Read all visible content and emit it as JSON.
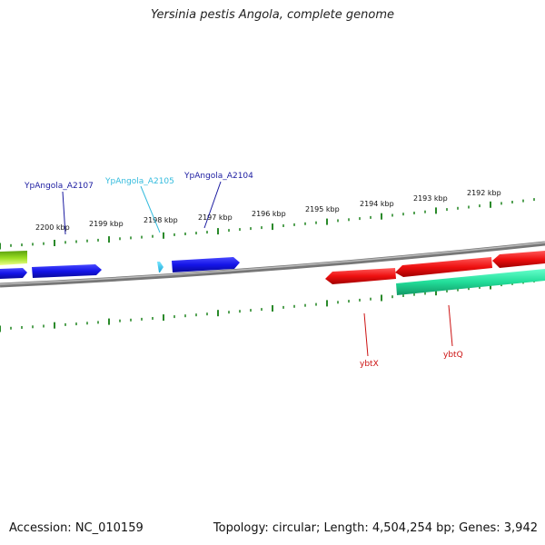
{
  "title": "Yersinia pestis Angola, complete genome",
  "footer": {
    "accession": "Accession: NC_010159",
    "stats": "Topology: circular; Length: 4,504,254 bp; Genes: 3,942"
  },
  "colors": {
    "backbone": "#888888",
    "ticks": "#2a8a2a",
    "gene_blue": "#1a1ae0",
    "gene_cyan": "#33ccee",
    "gene_red": "#ee1c1c",
    "gene_teal": "#22dd99",
    "gene_green": "#77cc22",
    "label_blue": "#1a1aa0",
    "label_cyan": "#33bbdd",
    "label_red": "#cc1111"
  },
  "scale": {
    "unit": "kbp",
    "labels": [
      "2200 kbp",
      "2199 kbp",
      "2198 kbp",
      "2197 kbp",
      "2196 kbp",
      "2195 kbp",
      "2194 kbp",
      "2193 kbp",
      "2192 kbp"
    ],
    "label_values": [
      2200,
      2199,
      2198,
      2197,
      2196,
      2195,
      2194,
      2193,
      2192
    ]
  },
  "gene_labels": [
    {
      "text": "YpAngola_A2107",
      "color": "label_blue"
    },
    {
      "text": "YpAngola_A2105",
      "color": "label_cyan"
    },
    {
      "text": "YpAngola_A2104",
      "color": "label_blue"
    },
    {
      "text": "ybtX",
      "color": "label_red"
    },
    {
      "text": "ybtQ",
      "color": "label_red"
    }
  ],
  "genes": [
    {
      "strand": "+",
      "color": "gene_blue"
    },
    {
      "strand": "+",
      "color": "gene_blue"
    },
    {
      "strand": "+",
      "color": "gene_cyan"
    },
    {
      "strand": "+",
      "color": "gene_blue"
    },
    {
      "strand": "-",
      "color": "gene_red"
    },
    {
      "strand": "-",
      "color": "gene_red"
    },
    {
      "strand": "-",
      "color": "gene_red"
    },
    {
      "strand": "-",
      "color": "gene_teal"
    },
    {
      "strand": "+",
      "color": "gene_green"
    }
  ]
}
